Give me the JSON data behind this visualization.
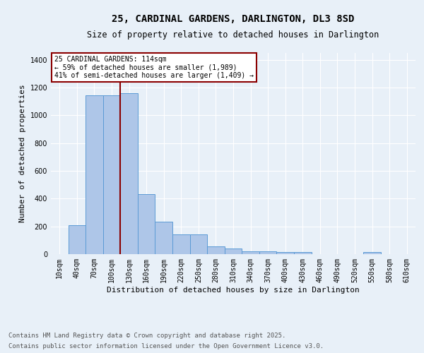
{
  "title": "25, CARDINAL GARDENS, DARLINGTON, DL3 8SD",
  "subtitle": "Size of property relative to detached houses in Darlington",
  "xlabel": "Distribution of detached houses by size in Darlington",
  "ylabel": "Number of detached properties",
  "footer_line1": "Contains HM Land Registry data © Crown copyright and database right 2025.",
  "footer_line2": "Contains public sector information licensed under the Open Government Licence v3.0.",
  "bin_labels": [
    "10sqm",
    "40sqm",
    "70sqm",
    "100sqm",
    "130sqm",
    "160sqm",
    "190sqm",
    "220sqm",
    "250sqm",
    "280sqm",
    "310sqm",
    "340sqm",
    "370sqm",
    "400sqm",
    "430sqm",
    "460sqm",
    "490sqm",
    "520sqm",
    "550sqm",
    "580sqm",
    "610sqm"
  ],
  "bar_values": [
    0,
    207,
    1145,
    1145,
    1160,
    430,
    235,
    145,
    145,
    58,
    40,
    20,
    20,
    15,
    15,
    0,
    0,
    0,
    15,
    0,
    0
  ],
  "bar_color": "#aec6e8",
  "bar_edge_color": "#5b9bd5",
  "vline_x": 3.5,
  "vline_color": "#8b0000",
  "annotation_box_text": "25 CARDINAL GARDENS: 114sqm\n← 59% of detached houses are smaller (1,989)\n41% of semi-detached houses are larger (1,409) →",
  "annotation_box_color": "#8b0000",
  "ylim": [
    0,
    1450
  ],
  "yticks": [
    0,
    200,
    400,
    600,
    800,
    1000,
    1200,
    1400
  ],
  "bg_color": "#e8f0f8",
  "grid_color": "#ffffff",
  "title_fontsize": 10,
  "subtitle_fontsize": 8.5,
  "axis_label_fontsize": 8,
  "tick_fontsize": 7,
  "footer_fontsize": 6.5
}
